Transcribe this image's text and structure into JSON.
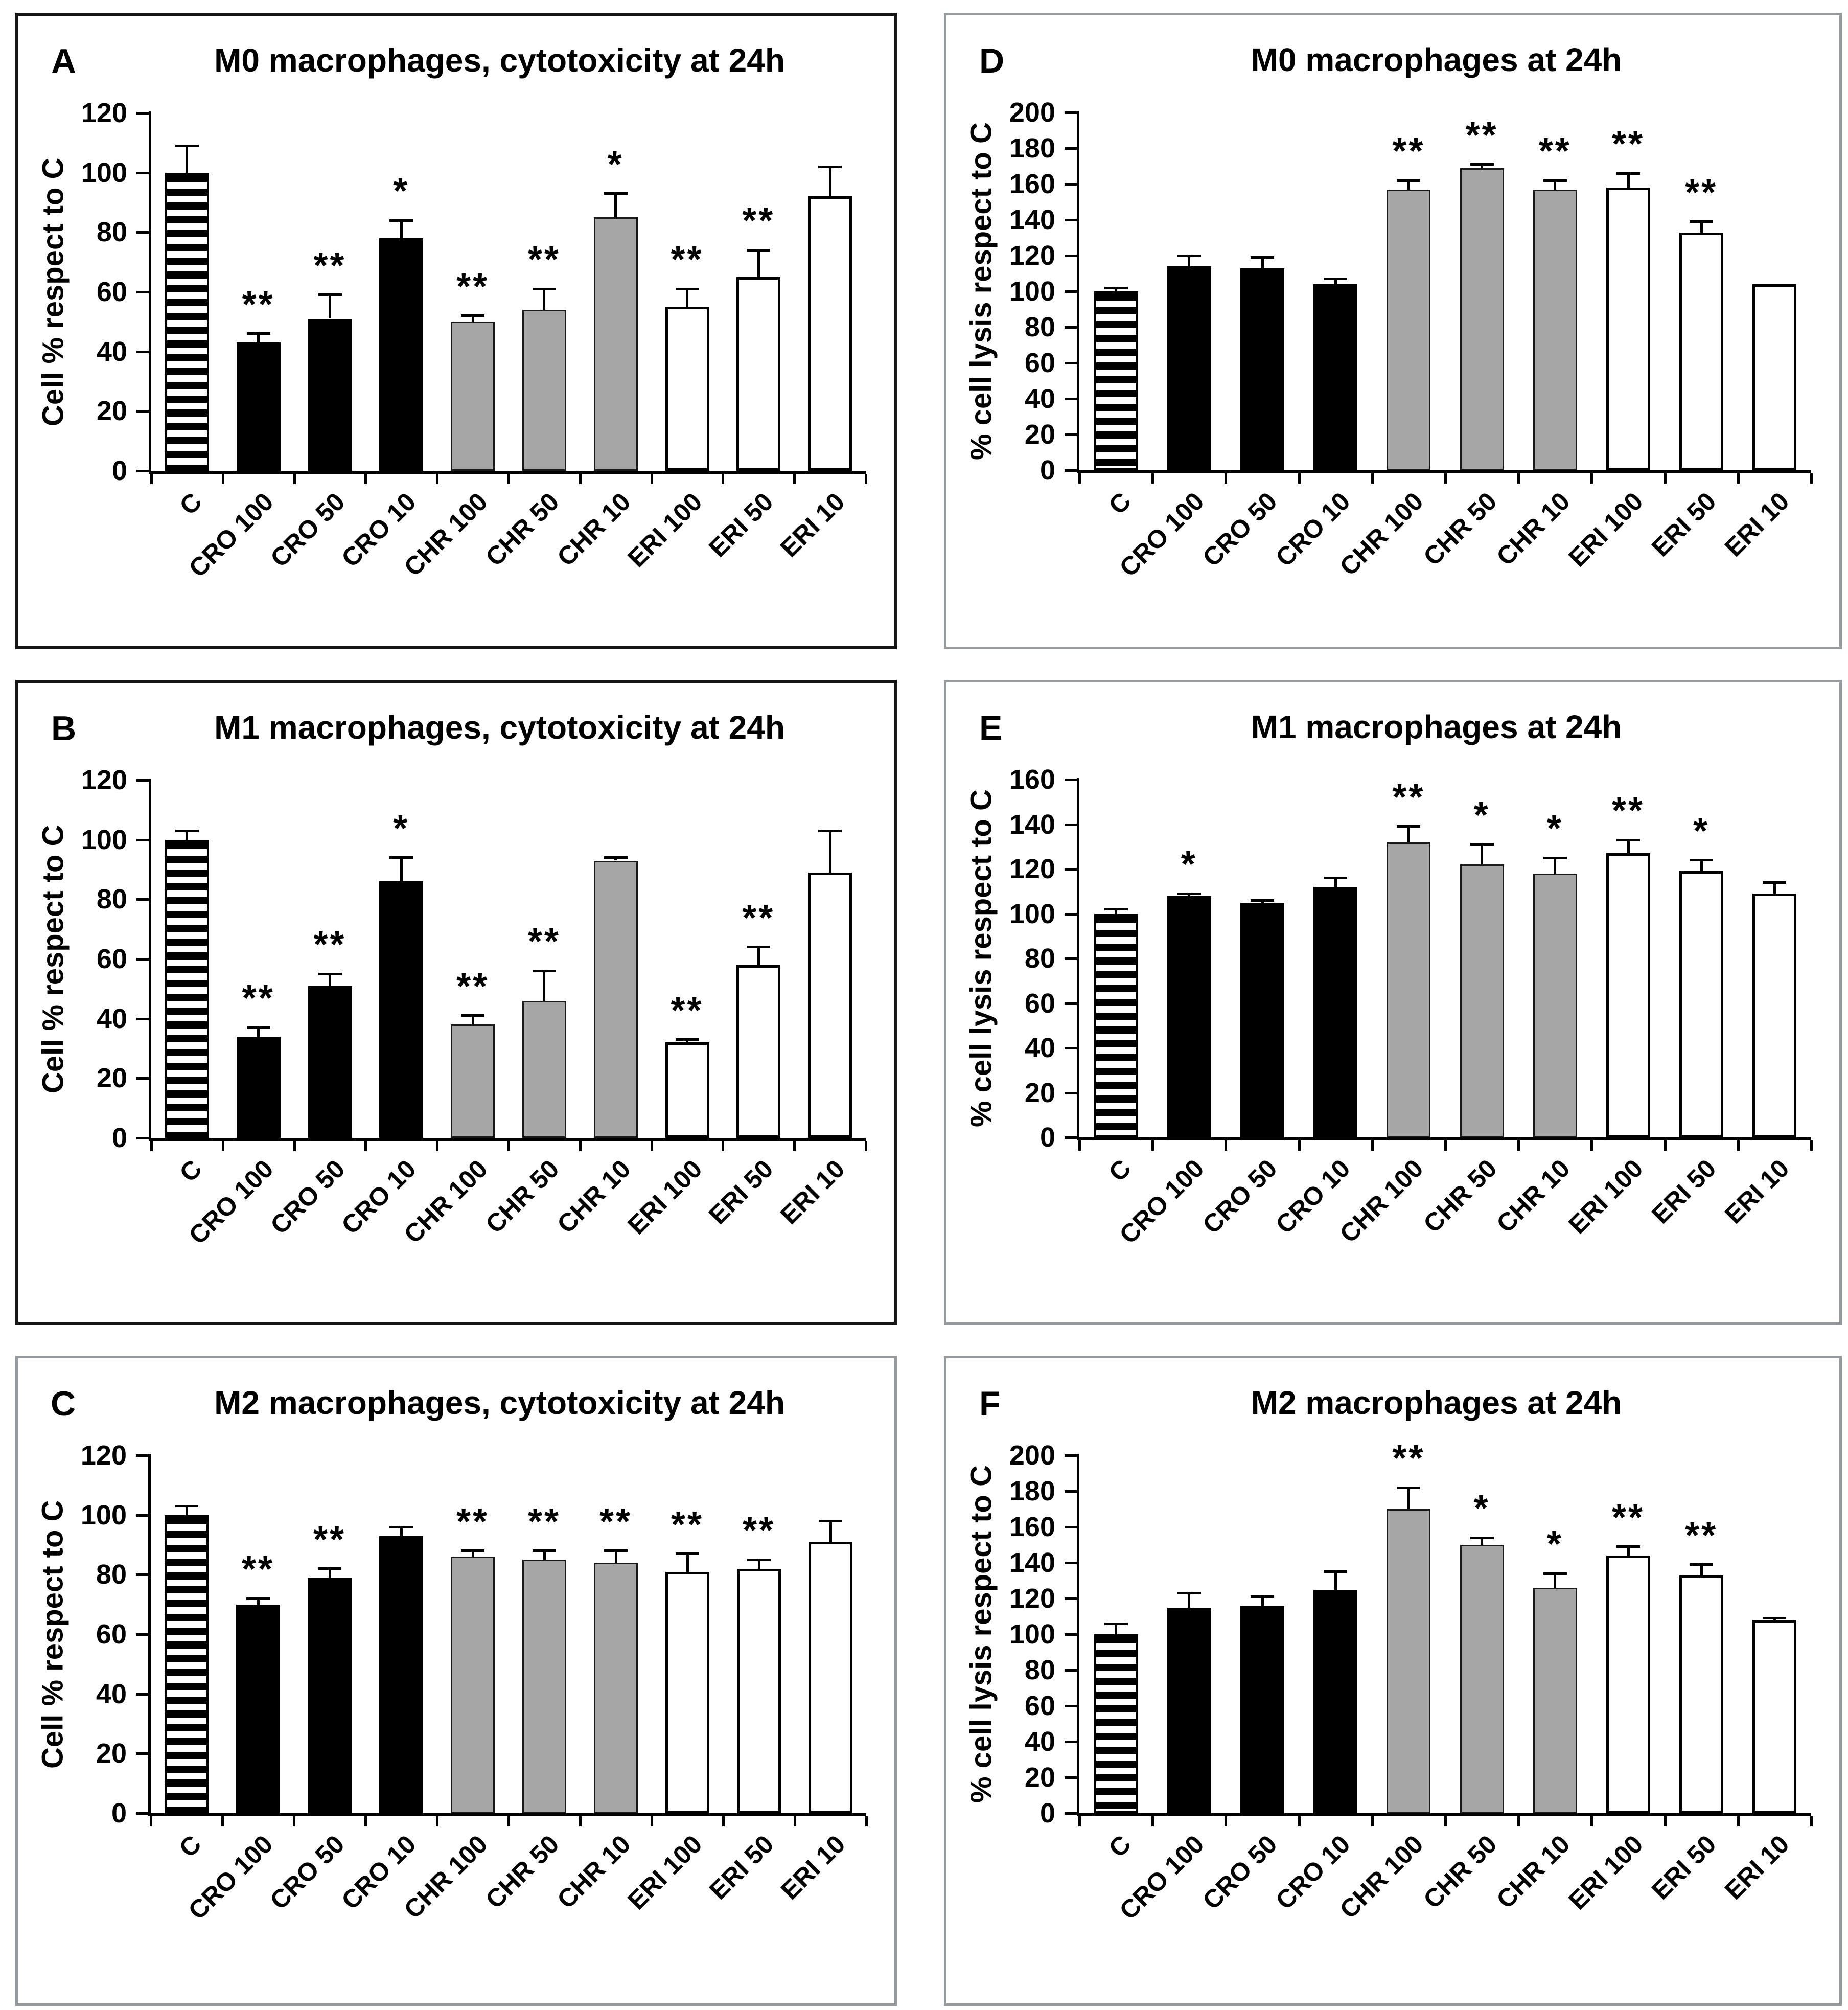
{
  "figure": {
    "type": "six-panel-bar-figure",
    "colors": {
      "bar_black": "#000000",
      "bar_gray": "#a6a6a6",
      "bar_white": "#ffffff",
      "axis": "#000000",
      "left_panel_border": "#161616",
      "right_panel_border": "#95999b"
    }
  },
  "chart_data": [
    {
      "panel": "A",
      "type": "bar",
      "title": "M0 macrophages, cytotoxicity at 24h",
      "ylabel": "Cell % respect to C",
      "ylim": [
        0,
        120
      ],
      "ytick_step": 20,
      "grid": false,
      "legend": "none",
      "categories": [
        "C",
        "CRO 100",
        "CRO 50",
        "CRO 10",
        "CHR 100",
        "CHR 50",
        "CHR 10",
        "ERI 100",
        "ERI 50",
        "ERI 10"
      ],
      "values": [
        100,
        43,
        51,
        78,
        50,
        54,
        85,
        55,
        65,
        92
      ],
      "errors": [
        9,
        3,
        8,
        6,
        2,
        7,
        8,
        6,
        9,
        10
      ],
      "significance": [
        "",
        "**",
        "**",
        "*",
        "**",
        "**",
        "*",
        "**",
        "**",
        ""
      ],
      "bar_styles": [
        "stripes",
        "black",
        "black",
        "black",
        "gray",
        "gray",
        "gray",
        "white",
        "white",
        "white"
      ]
    },
    {
      "panel": "D",
      "type": "bar",
      "title": "M0 macrophages at 24h",
      "ylabel": "% cell lysis respect to C",
      "ylim": [
        0,
        200
      ],
      "ytick_step": 20,
      "grid": false,
      "legend": "none",
      "categories": [
        "C",
        "CRO 100",
        "CRO 50",
        "CRO 10",
        "CHR 100",
        "CHR 50",
        "CHR 10",
        "ERI 100",
        "ERI 50",
        "ERI 10"
      ],
      "values": [
        100,
        114,
        113,
        104,
        157,
        169,
        157,
        158,
        133,
        104
      ],
      "errors": [
        2,
        6,
        6,
        3,
        5,
        2,
        5,
        8,
        6,
        0
      ],
      "significance": [
        "",
        "",
        "",
        "",
        "**",
        "**",
        "**",
        "**",
        "**",
        ""
      ],
      "bar_styles": [
        "stripes",
        "black",
        "black",
        "black",
        "gray",
        "gray",
        "gray",
        "white",
        "white",
        "white"
      ]
    },
    {
      "panel": "B",
      "type": "bar",
      "title": "M1 macrophages, cytotoxicity at 24h",
      "ylabel": "Cell % respect to C",
      "ylim": [
        0,
        120
      ],
      "ytick_step": 20,
      "grid": false,
      "legend": "none",
      "categories": [
        "C",
        "CRO 100",
        "CRO 50",
        "CRO 10",
        "CHR 100",
        "CHR 50",
        "CHR 10",
        "ERI 100",
        "ERI 50",
        "ERI 10"
      ],
      "values": [
        100,
        34,
        51,
        86,
        38,
        46,
        93,
        32,
        58,
        89
      ],
      "errors": [
        3,
        3,
        4,
        8,
        3,
        10,
        1,
        1,
        6,
        14
      ],
      "significance": [
        "",
        "**",
        "**",
        "*",
        "**",
        "**",
        "",
        "**",
        "**",
        ""
      ],
      "bar_styles": [
        "stripes",
        "black",
        "black",
        "black",
        "gray",
        "gray",
        "gray",
        "white",
        "white",
        "white"
      ]
    },
    {
      "panel": "E",
      "type": "bar",
      "title": "M1 macrophages at 24h",
      "ylabel": "% cell lysis respect to C",
      "ylim": [
        0,
        160
      ],
      "ytick_step": 20,
      "grid": false,
      "legend": "none",
      "categories": [
        "C",
        "CRO 100",
        "CRO 50",
        "CRO 10",
        "CHR 100",
        "CHR 50",
        "CHR 10",
        "ERI 100",
        "ERI 50",
        "ERI 10"
      ],
      "values": [
        100,
        108,
        105,
        112,
        132,
        122,
        118,
        127,
        119,
        109
      ],
      "errors": [
        2,
        1,
        1,
        4,
        7,
        9,
        7,
        6,
        5,
        5
      ],
      "significance": [
        "",
        "*",
        "",
        "",
        "**",
        "*",
        "*",
        "**",
        "*",
        ""
      ],
      "bar_styles": [
        "stripes",
        "black",
        "black",
        "black",
        "gray",
        "gray",
        "gray",
        "white",
        "white",
        "white"
      ]
    },
    {
      "panel": "C",
      "type": "bar",
      "title": "M2 macrophages, cytotoxicity at 24h",
      "ylabel": "Cell % respect to C",
      "ylim": [
        0,
        120
      ],
      "ytick_step": 20,
      "grid": false,
      "legend": "none",
      "categories": [
        "C",
        "CRO 100",
        "CRO 50",
        "CRO 10",
        "CHR 100",
        "CHR 50",
        "CHR 10",
        "ERI 100",
        "ERI 50",
        "ERI 10"
      ],
      "values": [
        100,
        70,
        79,
        93,
        86,
        85,
        84,
        81,
        82,
        91
      ],
      "errors": [
        3,
        2,
        3,
        3,
        2,
        3,
        4,
        6,
        3,
        7
      ],
      "significance": [
        "",
        "**",
        "**",
        "",
        "**",
        "**",
        "**",
        "**",
        "**",
        ""
      ],
      "bar_styles": [
        "stripes",
        "black",
        "black",
        "black",
        "gray",
        "gray",
        "gray",
        "white",
        "white",
        "white"
      ]
    },
    {
      "panel": "F",
      "type": "bar",
      "title": "M2 macrophages at 24h",
      "ylabel": "% cell lysis respect to C",
      "ylim": [
        0,
        200
      ],
      "ytick_step": 20,
      "grid": false,
      "legend": "none",
      "categories": [
        "C",
        "CRO 100",
        "CRO 50",
        "CRO 10",
        "CHR 100",
        "CHR 50",
        "CHR 10",
        "ERI 100",
        "ERI 50",
        "ERI 10"
      ],
      "values": [
        100,
        115,
        116,
        125,
        170,
        150,
        126,
        144,
        133,
        108
      ],
      "errors": [
        6,
        8,
        5,
        10,
        12,
        4,
        8,
        5,
        6,
        1
      ],
      "significance": [
        "",
        "",
        "",
        "",
        "**",
        "*",
        "*",
        "**",
        "**",
        ""
      ],
      "bar_styles": [
        "stripes",
        "black",
        "black",
        "black",
        "gray",
        "gray",
        "gray",
        "white",
        "white",
        "white"
      ]
    }
  ]
}
